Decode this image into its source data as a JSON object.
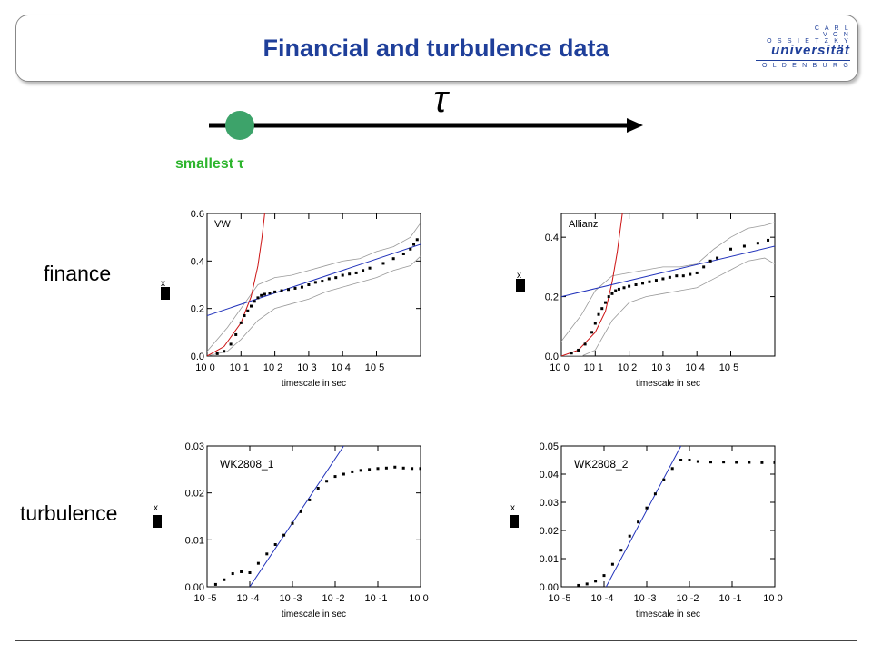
{
  "title": "Financial and turbulence data",
  "logo": {
    "line1": "C A R L",
    "line2": "V O N",
    "line3": "O S S I E T Z K Y",
    "word": "universität",
    "line4": "O L D E N B U R G"
  },
  "tau_symbol": "τ",
  "smallest_label": "smallest τ",
  "row_labels": {
    "finance": "finance",
    "turbulence": "turbulence"
  },
  "ylabel_glyph": "x",
  "colors": {
    "title": "#1f3f9a",
    "marker": "#3da36a",
    "smallest": "#2db52d",
    "fit_line": "#2233bb",
    "gauss_curve": "#cc1111",
    "envelope": "#999999"
  },
  "chart_data": [
    {
      "type": "scatter",
      "annotation": "VW",
      "xlabel": "timescale in sec",
      "x_log": true,
      "xlim": [
        0,
        6.3
      ],
      "ylim": [
        0,
        0.6
      ],
      "x_ticks": [
        "10 0",
        "10 1",
        "10 2",
        "10 3",
        "10 4",
        "10 5"
      ],
      "y_ticks": [
        "0.0",
        "0.2",
        "0.4",
        "0.6"
      ],
      "points": [
        [
          0.3,
          0.01
        ],
        [
          0.5,
          0.02
        ],
        [
          0.7,
          0.05
        ],
        [
          0.85,
          0.09
        ],
        [
          1.0,
          0.14
        ],
        [
          1.1,
          0.17
        ],
        [
          1.2,
          0.19
        ],
        [
          1.3,
          0.21
        ],
        [
          1.4,
          0.23
        ],
        [
          1.5,
          0.245
        ],
        [
          1.6,
          0.255
        ],
        [
          1.7,
          0.26
        ],
        [
          1.85,
          0.265
        ],
        [
          2.0,
          0.27
        ],
        [
          2.2,
          0.275
        ],
        [
          2.4,
          0.28
        ],
        [
          2.6,
          0.285
        ],
        [
          2.8,
          0.29
        ],
        [
          3.0,
          0.3
        ],
        [
          3.2,
          0.31
        ],
        [
          3.4,
          0.315
        ],
        [
          3.6,
          0.325
        ],
        [
          3.8,
          0.33
        ],
        [
          4.0,
          0.34
        ],
        [
          4.2,
          0.345
        ],
        [
          4.4,
          0.35
        ],
        [
          4.6,
          0.36
        ],
        [
          4.8,
          0.37
        ],
        [
          5.2,
          0.39
        ],
        [
          5.5,
          0.41
        ],
        [
          5.8,
          0.43
        ],
        [
          6.0,
          0.45
        ],
        [
          6.1,
          0.47
        ],
        [
          6.2,
          0.49
        ]
      ],
      "fit_line": [
        [
          0,
          0.17
        ],
        [
          6.3,
          0.47
        ]
      ],
      "gauss_curve": [
        [
          0,
          0
        ],
        [
          0.5,
          0.04
        ],
        [
          1.0,
          0.14
        ],
        [
          1.3,
          0.25
        ],
        [
          1.5,
          0.38
        ],
        [
          1.62,
          0.5
        ],
        [
          1.7,
          0.6
        ]
      ],
      "envelope_upper": [
        [
          0,
          0.02
        ],
        [
          0.6,
          0.12
        ],
        [
          1.0,
          0.2
        ],
        [
          1.5,
          0.3
        ],
        [
          2.0,
          0.33
        ],
        [
          2.5,
          0.34
        ],
        [
          3.0,
          0.36
        ],
        [
          3.5,
          0.38
        ],
        [
          4.0,
          0.4
        ],
        [
          4.5,
          0.41
        ],
        [
          5.0,
          0.44
        ],
        [
          5.5,
          0.46
        ],
        [
          6.0,
          0.5
        ],
        [
          6.3,
          0.56
        ]
      ],
      "envelope_lower": [
        [
          0,
          0.0
        ],
        [
          0.6,
          0.02
        ],
        [
          1.0,
          0.07
        ],
        [
          1.5,
          0.15
        ],
        [
          2.0,
          0.2
        ],
        [
          2.5,
          0.22
        ],
        [
          3.0,
          0.24
        ],
        [
          3.5,
          0.27
        ],
        [
          4.0,
          0.29
        ],
        [
          4.5,
          0.31
        ],
        [
          5.0,
          0.33
        ],
        [
          5.5,
          0.36
        ],
        [
          6.0,
          0.38
        ],
        [
          6.3,
          0.42
        ]
      ]
    },
    {
      "type": "scatter",
      "annotation": "Allianz",
      "xlabel": "timescale in sec",
      "x_log": true,
      "xlim": [
        0,
        6.3
      ],
      "ylim": [
        0,
        0.48
      ],
      "x_ticks": [
        "10 0",
        "10 1",
        "10 2",
        "10 3",
        "10 4",
        "10 5"
      ],
      "y_ticks": [
        "0.0",
        "0.2",
        "0.4"
      ],
      "points": [
        [
          0.3,
          0.01
        ],
        [
          0.5,
          0.02
        ],
        [
          0.7,
          0.04
        ],
        [
          0.9,
          0.08
        ],
        [
          1.0,
          0.11
        ],
        [
          1.1,
          0.14
        ],
        [
          1.2,
          0.16
        ],
        [
          1.3,
          0.18
        ],
        [
          1.4,
          0.2
        ],
        [
          1.5,
          0.21
        ],
        [
          1.6,
          0.22
        ],
        [
          1.7,
          0.225
        ],
        [
          1.85,
          0.23
        ],
        [
          2.0,
          0.235
        ],
        [
          2.2,
          0.24
        ],
        [
          2.4,
          0.245
        ],
        [
          2.6,
          0.25
        ],
        [
          2.8,
          0.255
        ],
        [
          3.0,
          0.26
        ],
        [
          3.2,
          0.265
        ],
        [
          3.4,
          0.27
        ],
        [
          3.6,
          0.27
        ],
        [
          3.8,
          0.275
        ],
        [
          4.0,
          0.28
        ],
        [
          4.2,
          0.3
        ],
        [
          4.4,
          0.32
        ],
        [
          4.6,
          0.33
        ],
        [
          5.0,
          0.36
        ],
        [
          5.4,
          0.37
        ],
        [
          5.8,
          0.38
        ],
        [
          6.1,
          0.39
        ]
      ],
      "fit_line": [
        [
          0,
          0.2
        ],
        [
          6.3,
          0.37
        ]
      ],
      "gauss_curve": [
        [
          0,
          0
        ],
        [
          0.5,
          0.02
        ],
        [
          1.0,
          0.08
        ],
        [
          1.3,
          0.15
        ],
        [
          1.5,
          0.25
        ],
        [
          1.65,
          0.35
        ],
        [
          1.8,
          0.48
        ]
      ],
      "envelope_upper": [
        [
          0,
          0.05
        ],
        [
          0.6,
          0.14
        ],
        [
          1.0,
          0.22
        ],
        [
          1.5,
          0.27
        ],
        [
          2.0,
          0.28
        ],
        [
          2.5,
          0.29
        ],
        [
          3.0,
          0.3
        ],
        [
          3.5,
          0.3
        ],
        [
          4.0,
          0.31
        ],
        [
          4.5,
          0.36
        ],
        [
          5.0,
          0.4
        ],
        [
          5.5,
          0.43
        ],
        [
          6.0,
          0.44
        ],
        [
          6.3,
          0.45
        ]
      ],
      "envelope_lower": [
        [
          0,
          0.0
        ],
        [
          0.6,
          0.0
        ],
        [
          1.0,
          0.02
        ],
        [
          1.5,
          0.12
        ],
        [
          2.0,
          0.18
        ],
        [
          2.5,
          0.2
        ],
        [
          3.0,
          0.21
        ],
        [
          3.5,
          0.22
        ],
        [
          4.0,
          0.23
        ],
        [
          4.5,
          0.26
        ],
        [
          5.0,
          0.29
        ],
        [
          5.5,
          0.32
        ],
        [
          6.0,
          0.33
        ],
        [
          6.3,
          0.31
        ]
      ]
    },
    {
      "type": "scatter",
      "annotation": "WK2808_1",
      "xlabel": "timescale in sec",
      "x_log": true,
      "xlim": [
        -5,
        0
      ],
      "ylim": [
        0,
        0.03
      ],
      "x_ticks": [
        "10 -5",
        "10 -4",
        "10 -3",
        "10 -2",
        "10 -1",
        "10 0"
      ],
      "y_ticks": [
        "0.00",
        "0.01",
        "0.02",
        "0.03"
      ],
      "points": [
        [
          -4.8,
          0.0005
        ],
        [
          -4.6,
          0.0015
        ],
        [
          -4.4,
          0.0028
        ],
        [
          -4.2,
          0.0032
        ],
        [
          -4.0,
          0.003
        ],
        [
          -3.8,
          0.005
        ],
        [
          -3.6,
          0.007
        ],
        [
          -3.4,
          0.009
        ],
        [
          -3.2,
          0.011
        ],
        [
          -3.0,
          0.0135
        ],
        [
          -2.8,
          0.016
        ],
        [
          -2.6,
          0.0185
        ],
        [
          -2.4,
          0.021
        ],
        [
          -2.2,
          0.0225
        ],
        [
          -2.0,
          0.0235
        ],
        [
          -1.8,
          0.024
        ],
        [
          -1.6,
          0.0245
        ],
        [
          -1.4,
          0.0248
        ],
        [
          -1.2,
          0.025
        ],
        [
          -1.0,
          0.0252
        ],
        [
          -0.8,
          0.0253
        ],
        [
          -0.6,
          0.0255
        ],
        [
          -0.4,
          0.0253
        ],
        [
          -0.2,
          0.0252
        ],
        [
          0,
          0.0252
        ]
      ],
      "fit_line": [
        [
          -4.0,
          0.0
        ],
        [
          -1.8,
          0.03
        ]
      ]
    },
    {
      "type": "scatter",
      "annotation": "WK2808_2",
      "xlabel": "timescale in sec",
      "x_log": true,
      "xlim": [
        -5,
        0
      ],
      "ylim": [
        0,
        0.05
      ],
      "x_ticks": [
        "10 -5",
        "10 -4",
        "10 -3",
        "10 -2",
        "10 -1",
        "10 0"
      ],
      "y_ticks": [
        "0.00",
        "0.01",
        "0.02",
        "0.03",
        "0.04",
        "0.05"
      ],
      "points": [
        [
          -4.6,
          0.0005
        ],
        [
          -4.4,
          0.001
        ],
        [
          -4.2,
          0.002
        ],
        [
          -4.0,
          0.004
        ],
        [
          -3.8,
          0.008
        ],
        [
          -3.6,
          0.013
        ],
        [
          -3.4,
          0.018
        ],
        [
          -3.2,
          0.023
        ],
        [
          -3.0,
          0.028
        ],
        [
          -2.8,
          0.033
        ],
        [
          -2.6,
          0.038
        ],
        [
          -2.4,
          0.042
        ],
        [
          -2.2,
          0.045
        ],
        [
          -2.0,
          0.045
        ],
        [
          -1.8,
          0.0445
        ],
        [
          -1.5,
          0.0443
        ],
        [
          -1.2,
          0.0443
        ],
        [
          -0.9,
          0.0442
        ],
        [
          -0.6,
          0.0442
        ],
        [
          -0.3,
          0.0441
        ],
        [
          0,
          0.0441
        ]
      ],
      "fit_line": [
        [
          -3.95,
          0.0
        ],
        [
          -2.2,
          0.05
        ]
      ]
    }
  ]
}
